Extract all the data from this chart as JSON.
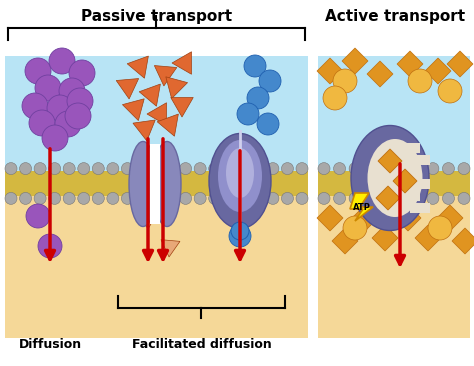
{
  "title_passive": "Passive transport",
  "title_active": "Active transport",
  "label_diffusion": "Diffusion",
  "label_facilitated": "Facilitated diffusion",
  "label_atp": "ATP",
  "bg_color": "#ffffff",
  "cell_top_color": "#b8e4f5",
  "cell_bottom_color": "#f5d898",
  "membrane_yellow": "#d4b840",
  "membrane_gray": "#a8a8a8",
  "protein_color": "#8888bb",
  "protein_dark": "#6868a0",
  "purple_sphere": "#9955bb",
  "orange_triangle": "#e06830",
  "blue_sphere": "#4488cc",
  "orange_diamond": "#e09420",
  "orange_circle": "#f0b840",
  "red_arrow": "#cc0000",
  "atp_yellow": "#ffee00",
  "atp_outline": "#cc8800"
}
